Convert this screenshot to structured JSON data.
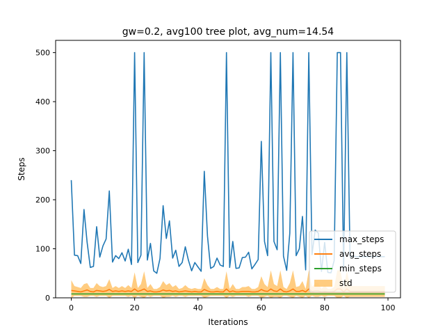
{
  "chart_data": {
    "type": "line",
    "title": "gw=0.2, avg100 tree plot, avg_num=14.54",
    "xlabel": "Iterations",
    "ylabel": "Steps",
    "xlim": [
      -4.95,
      103.95
    ],
    "ylim": [
      0,
      525
    ],
    "xticks": [
      0,
      20,
      40,
      60,
      80,
      100
    ],
    "yticks": [
      0,
      100,
      200,
      300,
      400,
      500
    ],
    "legend_position": "lower-right",
    "colors": {
      "max_steps": "#1f77b4",
      "avg_steps": "#ff7f0e",
      "min_steps": "#2ca02c",
      "std": "#ffbb55"
    },
    "x": [
      0,
      1,
      2,
      3,
      4,
      5,
      6,
      7,
      8,
      9,
      10,
      11,
      12,
      13,
      14,
      15,
      16,
      17,
      18,
      19,
      20,
      21,
      22,
      23,
      24,
      25,
      26,
      27,
      28,
      29,
      30,
      31,
      32,
      33,
      34,
      35,
      36,
      37,
      38,
      39,
      40,
      41,
      42,
      43,
      44,
      45,
      46,
      47,
      48,
      49,
      50,
      51,
      52,
      53,
      54,
      55,
      56,
      57,
      58,
      59,
      60,
      61,
      62,
      63,
      64,
      65,
      66,
      67,
      68,
      69,
      70,
      71,
      72,
      73,
      74,
      75,
      76,
      77,
      78,
      79,
      80,
      81,
      82,
      83,
      84,
      85,
      86,
      87,
      88,
      89,
      90,
      91,
      92,
      93,
      94,
      95,
      96,
      97,
      98,
      99
    ],
    "series": [
      {
        "name": "max_steps",
        "values": [
          240,
          87,
          86,
          70,
          180,
          113,
          62,
          64,
          145,
          83,
          106,
          120,
          218,
          73,
          86,
          80,
          92,
          75,
          99,
          68,
          500,
          72,
          87,
          500,
          77,
          111,
          55,
          50,
          80,
          188,
          121,
          157,
          81,
          97,
          64,
          72,
          104,
          76,
          55,
          72,
          63,
          54,
          258,
          126,
          60,
          64,
          81,
          67,
          64,
          500,
          62,
          115,
          60,
          61,
          82,
          83,
          93,
          59,
          68,
          78,
          319,
          115,
          86,
          500,
          115,
          98,
          500,
          85,
          56,
          132,
          500,
          86,
          100,
          166,
          57,
          500,
          88,
          138,
          132,
          54,
          113,
          52,
          51,
          76,
          500,
          500,
          58,
          500,
          83,
          85,
          84,
          84,
          84,
          84,
          84,
          84,
          84,
          84,
          84,
          84
        ]
      },
      {
        "name": "avg_steps",
        "values": [
          15,
          14,
          13,
          12,
          14,
          16,
          13,
          12,
          15,
          14,
          13,
          14,
          17,
          13,
          14,
          13,
          14,
          13,
          14,
          13,
          18,
          13,
          15,
          18,
          13,
          14,
          12,
          12,
          13,
          16,
          14,
          15,
          13,
          14,
          12,
          13,
          14,
          13,
          12,
          13,
          12,
          12,
          17,
          14,
          12,
          12,
          13,
          12,
          12,
          18,
          12,
          14,
          12,
          12,
          13,
          13,
          13,
          12,
          12,
          13,
          17,
          14,
          13,
          18,
          14,
          13,
          18,
          13,
          12,
          14,
          18,
          13,
          13,
          15,
          12,
          18,
          13,
          14,
          14,
          12,
          13,
          12,
          12,
          13,
          18,
          18,
          12,
          18,
          13,
          13,
          13,
          13,
          13,
          13,
          13,
          13,
          13,
          13,
          13,
          13
        ]
      },
      {
        "name": "min_steps",
        "values": [
          8,
          8,
          8,
          8,
          8,
          8,
          8,
          8,
          8,
          8,
          8,
          8,
          8,
          8,
          8,
          8,
          8,
          8,
          8,
          8,
          8,
          8,
          8,
          8,
          8,
          8,
          8,
          8,
          8,
          8,
          8,
          8,
          8,
          8,
          8,
          8,
          8,
          8,
          8,
          8,
          8,
          8,
          8,
          8,
          8,
          8,
          8,
          8,
          8,
          8,
          8,
          8,
          8,
          8,
          8,
          8,
          8,
          8,
          8,
          8,
          8,
          8,
          8,
          8,
          8,
          8,
          8,
          8,
          8,
          8,
          8,
          8,
          8,
          8,
          8,
          8,
          8,
          8,
          8,
          8,
          8,
          8,
          8,
          8,
          8,
          8,
          8,
          8,
          8,
          8,
          8,
          8,
          8,
          8,
          8,
          8,
          8,
          8,
          8,
          8
        ]
      },
      {
        "name": "std",
        "type": "band",
        "upper": [
          36,
          24,
          22,
          20,
          28,
          30,
          20,
          20,
          30,
          24,
          22,
          24,
          38,
          20,
          24,
          20,
          24,
          20,
          26,
          20,
          52,
          20,
          28,
          54,
          20,
          28,
          18,
          18,
          22,
          34,
          26,
          30,
          22,
          26,
          18,
          20,
          26,
          20,
          18,
          20,
          18,
          18,
          40,
          26,
          18,
          18,
          22,
          18,
          18,
          54,
          18,
          28,
          18,
          18,
          22,
          22,
          24,
          18,
          18,
          22,
          44,
          28,
          22,
          56,
          28,
          24,
          56,
          22,
          18,
          30,
          56,
          22,
          24,
          34,
          18,
          56,
          22,
          30,
          30,
          18,
          26,
          18,
          18,
          22,
          56,
          56,
          18,
          56,
          24,
          24,
          24,
          24,
          24,
          24,
          24,
          24,
          24,
          24,
          24,
          24
        ],
        "lower": [
          0,
          4,
          4,
          4,
          2,
          2,
          4,
          4,
          2,
          4,
          4,
          4,
          0,
          4,
          4,
          4,
          4,
          4,
          2,
          4,
          0,
          4,
          2,
          0,
          4,
          2,
          4,
          4,
          4,
          0,
          2,
          2,
          4,
          2,
          4,
          4,
          2,
          4,
          4,
          4,
          4,
          4,
          0,
          2,
          4,
          4,
          4,
          4,
          4,
          0,
          4,
          2,
          4,
          4,
          4,
          4,
          2,
          4,
          4,
          4,
          0,
          2,
          4,
          0,
          2,
          2,
          0,
          4,
          4,
          2,
          0,
          4,
          2,
          0,
          4,
          0,
          4,
          2,
          2,
          4,
          2,
          4,
          4,
          4,
          0,
          0,
          4,
          0,
          2,
          2,
          2,
          2,
          2,
          2,
          2,
          2,
          2,
          2,
          2,
          2
        ]
      }
    ]
  }
}
